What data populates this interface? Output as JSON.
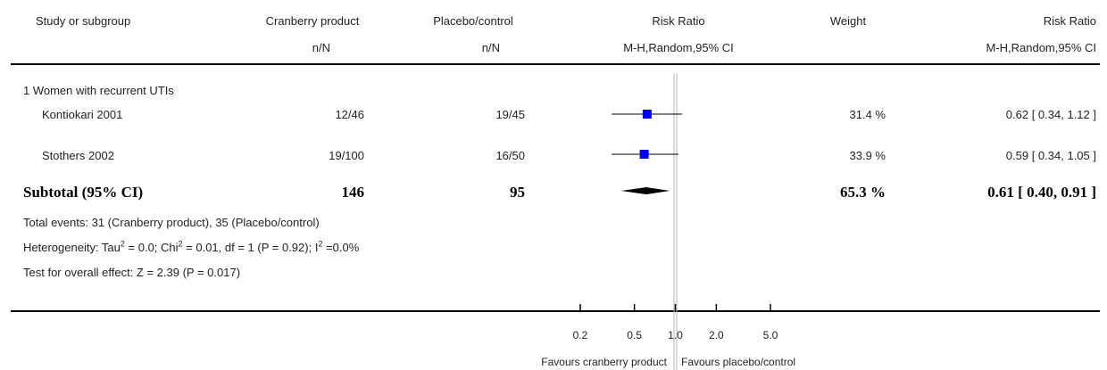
{
  "header": {
    "study_col": "Study or subgroup",
    "exp_col": "Cranberry product",
    "exp_sub": "n/N",
    "ctl_col": "Placebo/control",
    "ctl_sub": "n/N",
    "plot_col": "Risk Ratio",
    "plot_sub": "M-H,Random,95% CI",
    "weight_col": "Weight",
    "rr_col": "Risk Ratio",
    "rr_sub": "M-H,Random,95% CI"
  },
  "subgroup_label": "1 Women with recurrent UTIs",
  "subtotal": {
    "label": "Subtotal (95% CI)",
    "exp_total": "146",
    "ctl_total": "95",
    "weight": "65.3 %",
    "rr_text": "0.61 [ 0.40, 0.91 ]"
  },
  "footer": {
    "total_events": "Total events: 31 (Cranberry product), 35 (Placebo/control)",
    "het_a": "Heterogeneity: Tau",
    "het_b": " = 0.0; Chi",
    "het_c": " = 0.01, df = 1 (P = 0.92); I",
    "het_d": " =0.0%",
    "sup2": "2",
    "overall": "Test for overall effect: Z = 2.39 (P = 0.017)"
  },
  "axis": {
    "favours_left": "Favours cranberry product",
    "favours_right": "Favours placebo/control"
  },
  "chart_data": {
    "type": "forest",
    "scale": "log",
    "xlim": [
      0.2,
      5.0
    ],
    "ticks": [
      0.2,
      0.5,
      1.0,
      2.0,
      5.0
    ],
    "tick_labels": [
      "0.2",
      "0.5",
      "1.0",
      "2.0",
      "5.0"
    ],
    "reference_line": 1.0,
    "studies": [
      {
        "name": "Kontiokari 2001",
        "exp": "12/46",
        "ctl": "19/45",
        "rr": 0.62,
        "lo": 0.34,
        "hi": 1.12,
        "weight": "31.4 %",
        "rr_text": "0.62 [ 0.34, 1.12 ]"
      },
      {
        "name": "Stothers 2002",
        "exp": "19/100",
        "ctl": "16/50",
        "rr": 0.59,
        "lo": 0.34,
        "hi": 1.05,
        "weight": "33.9 %",
        "rr_text": "0.59 [ 0.34, 1.05 ]"
      }
    ],
    "pooled": {
      "rr": 0.61,
      "lo": 0.4,
      "hi": 0.91
    }
  }
}
